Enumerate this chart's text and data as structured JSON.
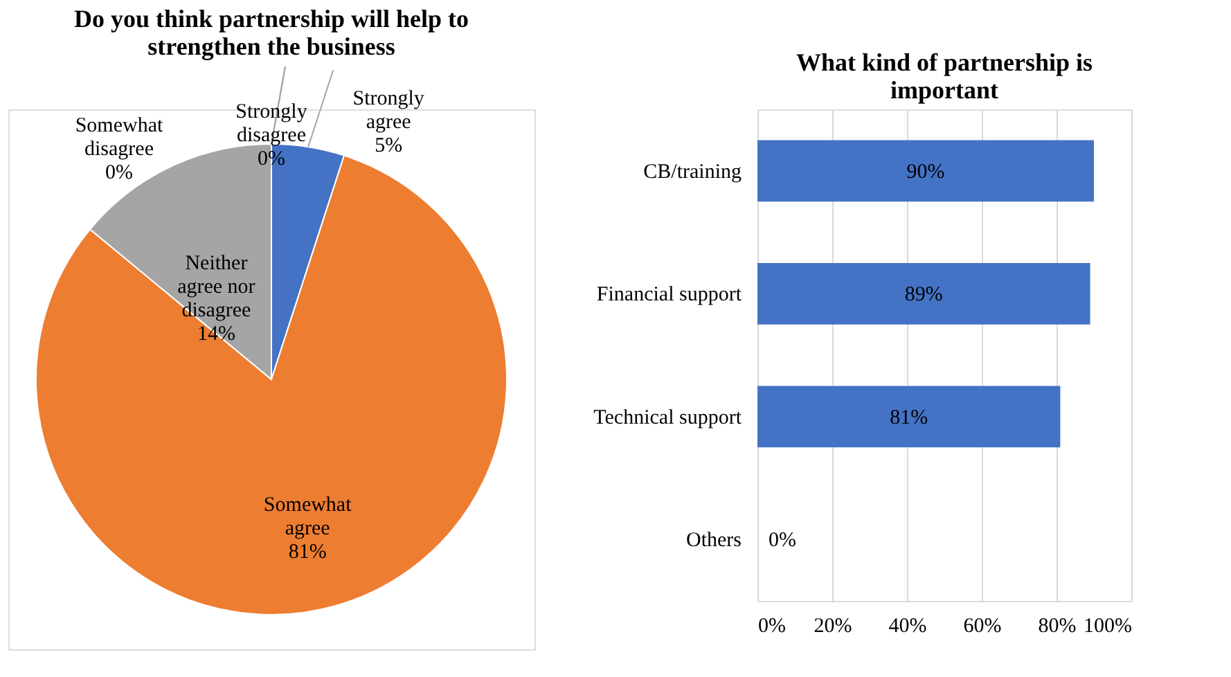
{
  "chart_data": [
    {
      "type": "pie",
      "title": "Do you think partnership will help to strengthen the business",
      "categories": [
        "Strongly agree",
        "Somewhat agree",
        "Neither agree nor disagree",
        "Somewhat disagree",
        "Strongly disagree"
      ],
      "values": [
        5,
        81,
        14,
        0,
        0
      ],
      "colors": [
        "#4472c4",
        "#ed7d31",
        "#a5a5a5",
        "#ffc000",
        "#5b9bd5"
      ],
      "value_labels": [
        "5%",
        "81%",
        "14%",
        "0%",
        "0%"
      ],
      "legend": false
    },
    {
      "type": "bar",
      "orientation": "horizontal",
      "title": "What kind of partnership is important",
      "categories": [
        "CB/training",
        "Financial support",
        "Technical support",
        "Others"
      ],
      "values": [
        90,
        89,
        81,
        0
      ],
      "color": "#4472c4",
      "value_labels": [
        "90%",
        "89%",
        "81%",
        "0%"
      ],
      "xlim": [
        0,
        100
      ],
      "xticks": [
        {
          "value": 0,
          "label": "0%"
        },
        {
          "value": 20,
          "label": "20%"
        },
        {
          "value": 40,
          "label": "40%"
        },
        {
          "value": 60,
          "label": "60%"
        },
        {
          "value": 80,
          "label": "80%"
        },
        {
          "value": 100,
          "label": "100%"
        }
      ],
      "grid": "x"
    }
  ]
}
